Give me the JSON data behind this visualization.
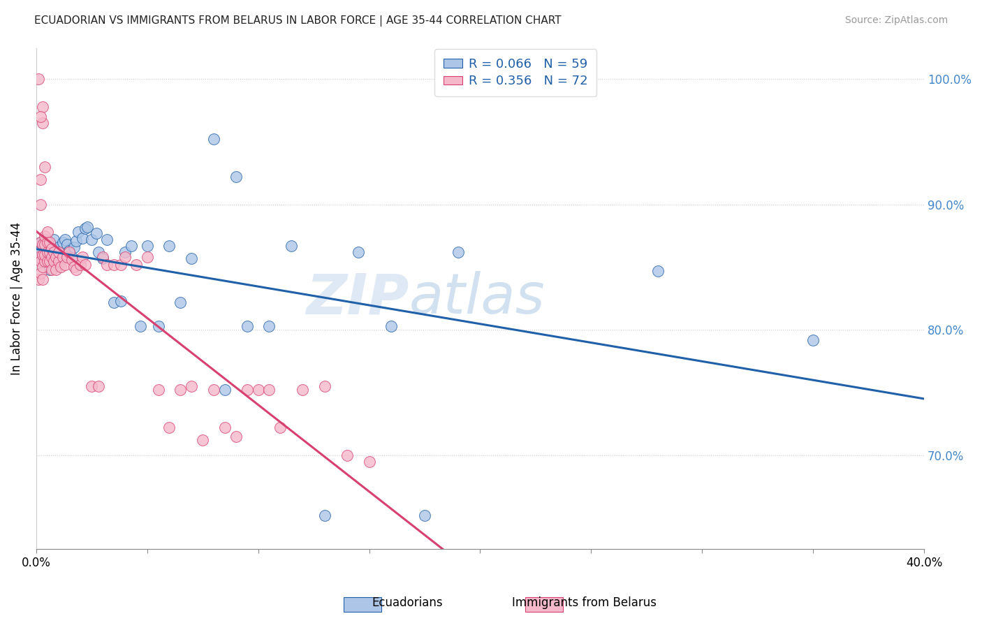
{
  "title": "ECUADORIAN VS IMMIGRANTS FROM BELARUS IN LABOR FORCE | AGE 35-44 CORRELATION CHART",
  "source": "Source: ZipAtlas.com",
  "ylabel": "In Labor Force | Age 35-44",
  "x_min": 0.0,
  "x_max": 0.4,
  "y_min": 0.625,
  "y_max": 1.025,
  "y_ticks": [
    0.7,
    0.8,
    0.9,
    1.0
  ],
  "y_tick_labels": [
    "70.0%",
    "80.0%",
    "90.0%",
    "100.0%"
  ],
  "x_ticks": [
    0.0,
    0.05,
    0.1,
    0.15,
    0.2,
    0.25,
    0.3,
    0.35,
    0.4
  ],
  "blue_color": "#adc6e8",
  "pink_color": "#f5b8ca",
  "blue_line_color": "#2060a8",
  "pink_line_color": "#d84070",
  "legend_R_blue": "0.066",
  "legend_N_blue": "59",
  "legend_R_pink": "0.356",
  "legend_N_pink": "72",
  "ecuadorians_x": [
    0.001,
    0.002,
    0.002,
    0.003,
    0.003,
    0.004,
    0.004,
    0.005,
    0.005,
    0.005,
    0.006,
    0.006,
    0.007,
    0.007,
    0.008,
    0.008,
    0.009,
    0.01,
    0.01,
    0.011,
    0.012,
    0.013,
    0.014,
    0.015,
    0.016,
    0.017,
    0.018,
    0.019,
    0.021,
    0.022,
    0.023,
    0.025,
    0.027,
    0.028,
    0.03,
    0.032,
    0.035,
    0.038,
    0.04,
    0.043,
    0.047,
    0.05,
    0.055,
    0.06,
    0.065,
    0.07,
    0.08,
    0.085,
    0.09,
    0.095,
    0.105,
    0.115,
    0.13,
    0.145,
    0.16,
    0.175,
    0.19,
    0.28,
    0.35
  ],
  "ecuadorians_y": [
    0.862,
    0.858,
    0.87,
    0.855,
    0.868,
    0.856,
    0.872,
    0.858,
    0.863,
    0.871,
    0.848,
    0.86,
    0.862,
    0.858,
    0.867,
    0.872,
    0.861,
    0.852,
    0.866,
    0.857,
    0.87,
    0.872,
    0.868,
    0.863,
    0.858,
    0.866,
    0.871,
    0.878,
    0.873,
    0.881,
    0.882,
    0.872,
    0.877,
    0.862,
    0.857,
    0.872,
    0.822,
    0.823,
    0.862,
    0.867,
    0.803,
    0.867,
    0.803,
    0.867,
    0.822,
    0.857,
    0.952,
    0.752,
    0.922,
    0.803,
    0.803,
    0.867,
    0.652,
    0.862,
    0.803,
    0.652,
    0.862,
    0.847,
    0.792
  ],
  "belarus_x": [
    0.001,
    0.001,
    0.002,
    0.002,
    0.002,
    0.003,
    0.003,
    0.003,
    0.003,
    0.004,
    0.004,
    0.004,
    0.004,
    0.005,
    0.005,
    0.005,
    0.005,
    0.006,
    0.006,
    0.006,
    0.007,
    0.007,
    0.007,
    0.008,
    0.008,
    0.009,
    0.009,
    0.01,
    0.01,
    0.011,
    0.012,
    0.013,
    0.014,
    0.015,
    0.016,
    0.017,
    0.018,
    0.02,
    0.021,
    0.022,
    0.025,
    0.028,
    0.03,
    0.032,
    0.035,
    0.038,
    0.04,
    0.045,
    0.05,
    0.055,
    0.06,
    0.065,
    0.07,
    0.075,
    0.08,
    0.085,
    0.09,
    0.095,
    0.1,
    0.105,
    0.11,
    0.12,
    0.13,
    0.14,
    0.15,
    0.003,
    0.003,
    0.002,
    0.002,
    0.002,
    0.001,
    0.004
  ],
  "belarus_y": [
    0.858,
    0.84,
    0.845,
    0.855,
    0.87,
    0.84,
    0.85,
    0.86,
    0.868,
    0.855,
    0.86,
    0.868,
    0.875,
    0.855,
    0.862,
    0.87,
    0.878,
    0.855,
    0.862,
    0.87,
    0.848,
    0.858,
    0.865,
    0.855,
    0.862,
    0.848,
    0.858,
    0.855,
    0.862,
    0.85,
    0.858,
    0.852,
    0.858,
    0.862,
    0.856,
    0.85,
    0.848,
    0.852,
    0.858,
    0.852,
    0.755,
    0.755,
    0.858,
    0.852,
    0.852,
    0.852,
    0.858,
    0.852,
    0.858,
    0.752,
    0.722,
    0.752,
    0.755,
    0.712,
    0.752,
    0.722,
    0.715,
    0.752,
    0.752,
    0.752,
    0.722,
    0.752,
    0.755,
    0.7,
    0.695,
    0.978,
    0.965,
    0.97,
    0.92,
    0.9,
    1.0,
    0.93
  ]
}
